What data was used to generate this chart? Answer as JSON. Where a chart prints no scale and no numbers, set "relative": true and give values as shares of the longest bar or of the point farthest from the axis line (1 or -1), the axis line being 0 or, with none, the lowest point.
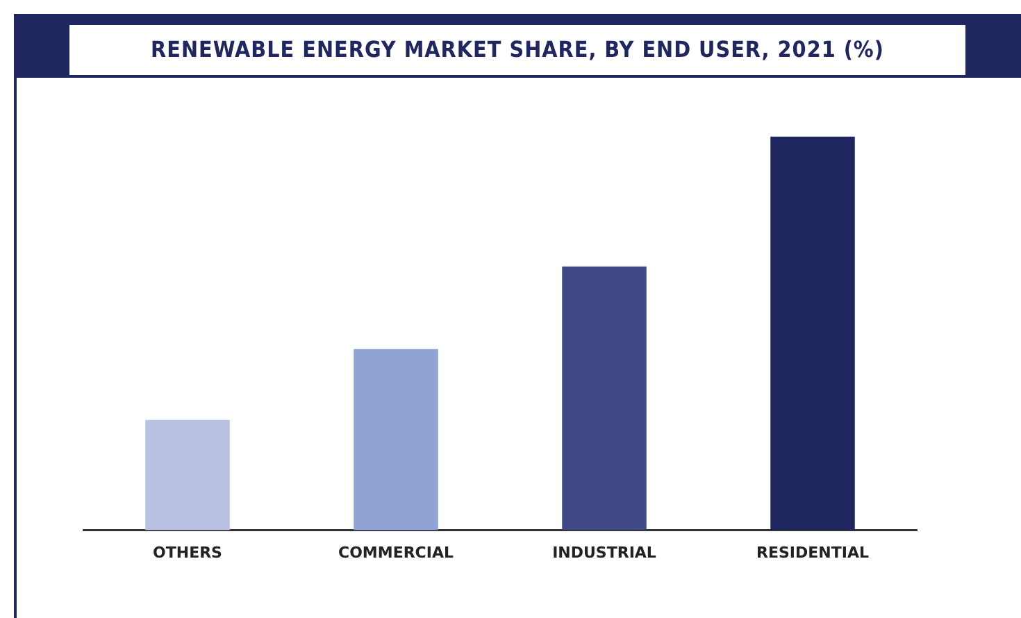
{
  "chart_data": {
    "type": "bar",
    "title": "RENEWABLE ENERGY MARKET SHARE, BY END USER, 2021 (%)",
    "categories": [
      "OTHERS",
      "COMMERCIAL",
      "INDUSTRIAL",
      "RESIDENTIAL"
    ],
    "values": [
      0.28,
      0.46,
      0.67,
      1
    ],
    "colors": [
      "#b8c1e2",
      "#8fa3d4",
      "#404a87",
      "#1f2660"
    ],
    "relative": true,
    "grid": false,
    "legend": false
  }
}
